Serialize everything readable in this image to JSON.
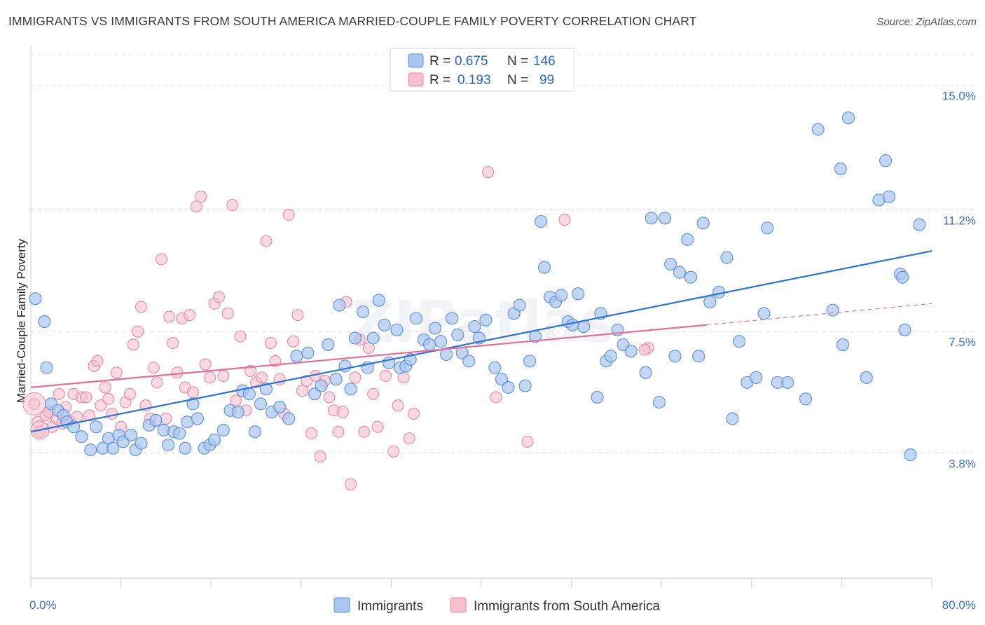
{
  "title": "IMMIGRANTS VS IMMIGRANTS FROM SOUTH AMERICA MARRIED-COUPLE FAMILY POVERTY CORRELATION CHART",
  "source": "Source: ZipAtlas.com",
  "watermark": "ZIPatlas",
  "colors": {
    "blue_fill": "#a9c6f0",
    "blue_stroke": "#5b8fd9",
    "blue_line": "#2e72d2",
    "pink_fill": "#f7bfd0",
    "pink_stroke": "#e98aa7",
    "pink_line": "#e0709a",
    "tick": "#3d73c9",
    "grid": "#dcdcdc"
  },
  "legend": {
    "rows": [
      {
        "r_label": "R =",
        "r_value": "0.675",
        "n_label": "N =",
        "n_value": "146"
      },
      {
        "r_label": "R =",
        "r_value": "0.193",
        "n_label": "N =",
        "n_value": "99"
      }
    ]
  },
  "chart_data": {
    "type": "scatter",
    "title": "IMMIGRANTS VS IMMIGRANTS FROM SOUTH AMERICA MARRIED-COUPLE FAMILY POVERTY CORRELATION CHART",
    "xlabel": "",
    "ylabel": "Married-Couple Family Poverty",
    "xlim": [
      0,
      80
    ],
    "ylim": [
      0,
      16.2
    ],
    "x_tick_labels": [
      "0.0%",
      "80.0%"
    ],
    "y_ticks": [
      3.8,
      7.5,
      11.2,
      15.0
    ],
    "y_tick_labels": [
      "3.8%",
      "7.5%",
      "11.2%",
      "15.0%"
    ],
    "series": [
      {
        "name": "Immigrants",
        "R": 0.675,
        "N": 146,
        "trend": {
          "x": [
            0,
            80
          ],
          "y": [
            4.45,
            9.95
          ]
        },
        "points": [
          [
            0.4,
            8.5
          ],
          [
            1.2,
            7.8
          ],
          [
            1.4,
            6.4
          ],
          [
            1.8,
            5.3
          ],
          [
            2.4,
            5.1
          ],
          [
            2.9,
            4.95
          ],
          [
            3.2,
            4.75
          ],
          [
            3.8,
            4.6
          ],
          [
            4.5,
            4.3
          ],
          [
            5.3,
            3.9
          ],
          [
            5.8,
            4.6
          ],
          [
            6.4,
            3.95
          ],
          [
            6.9,
            4.25
          ],
          [
            7.3,
            3.95
          ],
          [
            7.8,
            4.35
          ],
          [
            8.2,
            4.15
          ],
          [
            8.9,
            4.35
          ],
          [
            9.3,
            3.9
          ],
          [
            9.8,
            4.1
          ],
          [
            10.5,
            4.65
          ],
          [
            11.1,
            4.8
          ],
          [
            11.8,
            4.5
          ],
          [
            12.2,
            4.05
          ],
          [
            12.7,
            4.45
          ],
          [
            13.2,
            4.4
          ],
          [
            13.7,
            3.95
          ],
          [
            13.9,
            4.75
          ],
          [
            14.4,
            5.3
          ],
          [
            14.8,
            4.85
          ],
          [
            15.4,
            3.95
          ],
          [
            15.9,
            4.05
          ],
          [
            16.3,
            4.2
          ],
          [
            17.1,
            4.5
          ],
          [
            17.7,
            5.1
          ],
          [
            18.4,
            5.05
          ],
          [
            18.8,
            5.7
          ],
          [
            19.4,
            5.6
          ],
          [
            19.9,
            4.45
          ],
          [
            20.4,
            5.3
          ],
          [
            20.9,
            5.75
          ],
          [
            21.4,
            5.05
          ],
          [
            22.1,
            5.2
          ],
          [
            22.9,
            4.85
          ],
          [
            23.6,
            6.75
          ],
          [
            24.6,
            6.85
          ],
          [
            25.2,
            5.6
          ],
          [
            25.8,
            5.85
          ],
          [
            26.4,
            7.1
          ],
          [
            27.1,
            6.05
          ],
          [
            27.4,
            8.3
          ],
          [
            27.9,
            6.45
          ],
          [
            28.4,
            5.75
          ],
          [
            28.8,
            7.3
          ],
          [
            29.5,
            8.1
          ],
          [
            29.9,
            6.4
          ],
          [
            30.4,
            7.3
          ],
          [
            30.9,
            8.45
          ],
          [
            31.4,
            7.7
          ],
          [
            31.8,
            6.55
          ],
          [
            32.5,
            7.55
          ],
          [
            32.8,
            6.4
          ],
          [
            33.3,
            6.45
          ],
          [
            33.7,
            6.65
          ],
          [
            34.2,
            7.9
          ],
          [
            34.9,
            7.25
          ],
          [
            35.4,
            7.1
          ],
          [
            35.9,
            7.6
          ],
          [
            36.4,
            7.2
          ],
          [
            36.9,
            6.8
          ],
          [
            37.4,
            7.9
          ],
          [
            37.9,
            7.4
          ],
          [
            38.3,
            6.85
          ],
          [
            38.9,
            6.6
          ],
          [
            39.4,
            7.65
          ],
          [
            39.8,
            7.3
          ],
          [
            40.4,
            7.85
          ],
          [
            41.2,
            6.4
          ],
          [
            41.8,
            6.05
          ],
          [
            42.4,
            5.8
          ],
          [
            42.9,
            8.05
          ],
          [
            43.4,
            8.3
          ],
          [
            43.9,
            5.85
          ],
          [
            44.3,
            6.6
          ],
          [
            44.8,
            7.35
          ],
          [
            45.3,
            10.85
          ],
          [
            45.6,
            9.45
          ],
          [
            46.1,
            8.55
          ],
          [
            46.6,
            8.4
          ],
          [
            47.1,
            8.6
          ],
          [
            47.7,
            7.8
          ],
          [
            48.1,
            7.7
          ],
          [
            48.6,
            8.65
          ],
          [
            49.1,
            7.65
          ],
          [
            50.3,
            5.5
          ],
          [
            50.6,
            8.05
          ],
          [
            51.1,
            6.6
          ],
          [
            51.5,
            6.75
          ],
          [
            52.1,
            7.55
          ],
          [
            52.6,
            7.1
          ],
          [
            53.3,
            6.9
          ],
          [
            54.6,
            6.25
          ],
          [
            55.1,
            10.95
          ],
          [
            55.8,
            5.35
          ],
          [
            56.3,
            10.95
          ],
          [
            56.8,
            9.55
          ],
          [
            57.2,
            6.75
          ],
          [
            57.6,
            9.3
          ],
          [
            58.3,
            10.3
          ],
          [
            58.6,
            9.15
          ],
          [
            59.3,
            6.75
          ],
          [
            59.7,
            10.8
          ],
          [
            60.3,
            8.4
          ],
          [
            61.1,
            8.7
          ],
          [
            61.8,
            9.75
          ],
          [
            62.3,
            4.85
          ],
          [
            62.9,
            7.2
          ],
          [
            63.6,
            5.95
          ],
          [
            64.4,
            6.1
          ],
          [
            65.1,
            8.05
          ],
          [
            65.4,
            10.65
          ],
          [
            66.3,
            5.95
          ],
          [
            67.2,
            5.95
          ],
          [
            68.8,
            5.45
          ],
          [
            69.9,
            13.65
          ],
          [
            71.2,
            8.15
          ],
          [
            71.9,
            12.45
          ],
          [
            72.1,
            7.1
          ],
          [
            72.6,
            14.0
          ],
          [
            74.2,
            6.1
          ],
          [
            75.3,
            11.5
          ],
          [
            75.9,
            12.7
          ],
          [
            76.2,
            11.6
          ],
          [
            77.2,
            9.25
          ],
          [
            77.4,
            9.15
          ],
          [
            77.6,
            7.55
          ],
          [
            78.1,
            3.75
          ],
          [
            78.9,
            10.75
          ]
        ]
      },
      {
        "name": "Immigrants from South America",
        "R": 0.193,
        "N": 99,
        "trend": {
          "x": [
            0,
            60
          ],
          "y": [
            5.8,
            7.7
          ],
          "dashed_to": {
            "x": 80,
            "y": 8.35
          }
        },
        "points": [
          [
            0.3,
            5.3
          ],
          [
            0.6,
            4.75
          ],
          [
            0.8,
            4.45
          ],
          [
            1.3,
            4.95
          ],
          [
            1.6,
            5.05
          ],
          [
            1.9,
            4.6
          ],
          [
            2.3,
            4.85
          ],
          [
            2.5,
            5.6
          ],
          [
            2.8,
            4.7
          ],
          [
            3.1,
            5.2
          ],
          [
            3.4,
            4.8
          ],
          [
            3.8,
            5.6
          ],
          [
            4.1,
            4.9
          ],
          [
            4.5,
            5.5
          ],
          [
            4.9,
            5.5
          ],
          [
            5.2,
            4.95
          ],
          [
            5.6,
            6.45
          ],
          [
            5.9,
            6.6
          ],
          [
            6.2,
            5.25
          ],
          [
            6.6,
            5.8
          ],
          [
            6.9,
            5.45
          ],
          [
            7.2,
            5.0
          ],
          [
            7.6,
            6.25
          ],
          [
            8.0,
            4.6
          ],
          [
            8.4,
            5.35
          ],
          [
            8.8,
            5.6
          ],
          [
            9.1,
            7.1
          ],
          [
            9.5,
            7.5
          ],
          [
            9.8,
            8.25
          ],
          [
            10.2,
            5.25
          ],
          [
            10.6,
            4.85
          ],
          [
            10.9,
            6.4
          ],
          [
            11.2,
            5.95
          ],
          [
            11.6,
            9.7
          ],
          [
            12.0,
            4.85
          ],
          [
            12.3,
            7.95
          ],
          [
            12.6,
            7.15
          ],
          [
            13.0,
            6.25
          ],
          [
            13.4,
            7.9
          ],
          [
            13.7,
            5.8
          ],
          [
            14.1,
            8.0
          ],
          [
            14.4,
            5.65
          ],
          [
            14.7,
            11.3
          ],
          [
            15.1,
            11.6
          ],
          [
            15.5,
            6.5
          ],
          [
            15.9,
            6.1
          ],
          [
            16.3,
            8.35
          ],
          [
            16.7,
            8.55
          ],
          [
            17.1,
            6.15
          ],
          [
            17.5,
            8.05
          ],
          [
            17.9,
            11.35
          ],
          [
            18.2,
            5.4
          ],
          [
            18.6,
            7.35
          ],
          [
            19.1,
            5.1
          ],
          [
            19.5,
            6.3
          ],
          [
            20.0,
            5.95
          ],
          [
            20.5,
            6.1
          ],
          [
            20.9,
            10.25
          ],
          [
            21.3,
            7.15
          ],
          [
            21.7,
            6.6
          ],
          [
            22.1,
            6.05
          ],
          [
            22.5,
            5.0
          ],
          [
            22.9,
            11.05
          ],
          [
            23.3,
            7.2
          ],
          [
            23.7,
            8.0
          ],
          [
            24.1,
            5.7
          ],
          [
            24.5,
            6.0
          ],
          [
            24.9,
            4.4
          ],
          [
            25.3,
            6.15
          ],
          [
            25.7,
            3.7
          ],
          [
            26.1,
            6.0
          ],
          [
            26.5,
            5.5
          ],
          [
            26.9,
            5.1
          ],
          [
            27.3,
            4.45
          ],
          [
            27.7,
            5.05
          ],
          [
            28.0,
            8.4
          ],
          [
            28.4,
            2.85
          ],
          [
            28.8,
            6.1
          ],
          [
            29.2,
            7.25
          ],
          [
            29.6,
            4.45
          ],
          [
            30.0,
            7.0
          ],
          [
            30.4,
            5.6
          ],
          [
            30.8,
            4.6
          ],
          [
            31.5,
            6.15
          ],
          [
            32.2,
            3.85
          ],
          [
            32.6,
            5.25
          ],
          [
            33.1,
            6.1
          ],
          [
            33.6,
            4.25
          ],
          [
            34.0,
            5.0
          ],
          [
            40.6,
            12.35
          ],
          [
            41.3,
            5.5
          ],
          [
            44.1,
            4.15
          ],
          [
            47.4,
            10.9
          ],
          [
            54.8,
            7.0
          ],
          [
            54.5,
            6.95
          ]
        ]
      }
    ]
  },
  "bottom_legend": {
    "items": [
      {
        "label": "Immigrants"
      },
      {
        "label": "Immigrants from South America"
      }
    ]
  }
}
